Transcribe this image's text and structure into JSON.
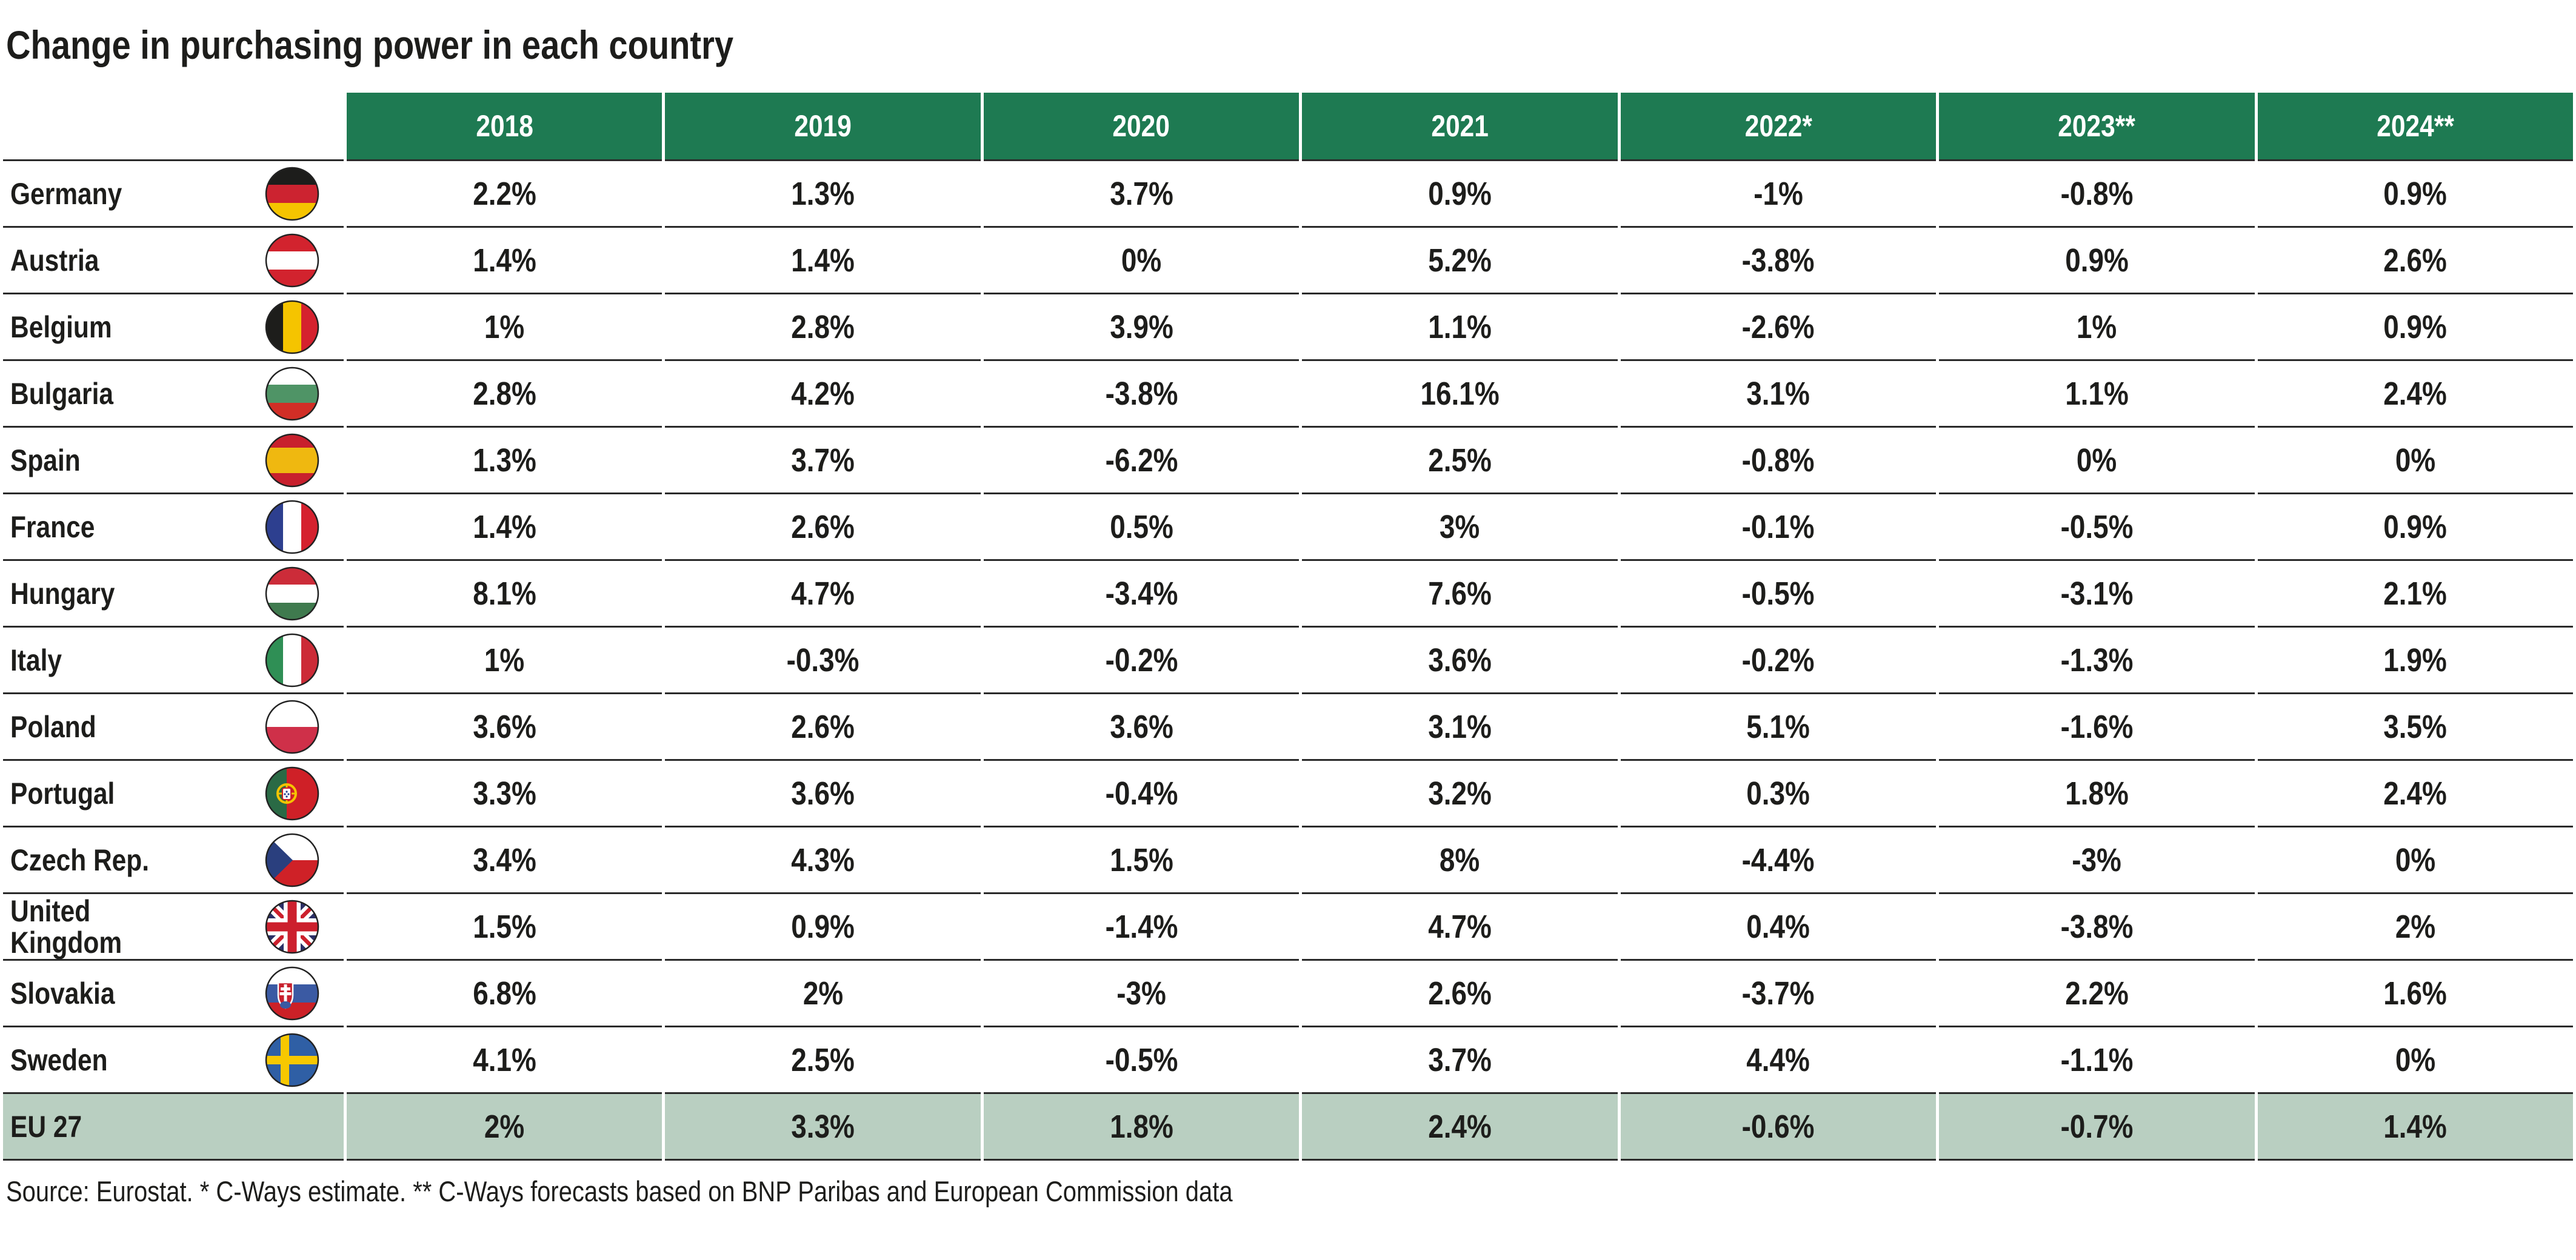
{
  "title": "Change in purchasing power in each country",
  "source_note": "Source: Eurostat. * C-Ways estimate. ** C-Ways forecasts based on BNP Paribas and European Commission data",
  "colors": {
    "header_green": "#1e7a52",
    "eu_row_green": "#b9cfc1",
    "row_border": "#2a2a2a",
    "text": "#1d1d1b",
    "header_text": "#ffffff"
  },
  "table": {
    "columns": [
      "2018",
      "2019",
      "2020",
      "2021",
      "2022*",
      "2023**",
      "2024**"
    ],
    "rows": [
      {
        "country": "Germany",
        "flag": "germany",
        "values": [
          "2.2%",
          "1.3%",
          "3.7%",
          "0.9%",
          "-1%",
          "-0.8%",
          "0.9%"
        ]
      },
      {
        "country": "Austria",
        "flag": "austria",
        "values": [
          "1.4%",
          "1.4%",
          "0%",
          "5.2%",
          "-3.8%",
          "0.9%",
          "2.6%"
        ]
      },
      {
        "country": "Belgium",
        "flag": "belgium",
        "values": [
          "1%",
          "2.8%",
          "3.9%",
          "1.1%",
          "-2.6%",
          "1%",
          "0.9%"
        ]
      },
      {
        "country": "Bulgaria",
        "flag": "bulgaria",
        "values": [
          "2.8%",
          "4.2%",
          "-3.8%",
          "16.1%",
          "3.1%",
          "1.1%",
          "2.4%"
        ]
      },
      {
        "country": "Spain",
        "flag": "spain",
        "values": [
          "1.3%",
          "3.7%",
          "-6.2%",
          "2.5%",
          "-0.8%",
          "0%",
          "0%"
        ]
      },
      {
        "country": "France",
        "flag": "france",
        "values": [
          "1.4%",
          "2.6%",
          "0.5%",
          "3%",
          "-0.1%",
          "-0.5%",
          "0.9%"
        ]
      },
      {
        "country": "Hungary",
        "flag": "hungary",
        "values": [
          "8.1%",
          "4.7%",
          "-3.4%",
          "7.6%",
          "-0.5%",
          "-3.1%",
          "2.1%"
        ]
      },
      {
        "country": "Italy",
        "flag": "italy",
        "values": [
          "1%",
          "-0.3%",
          "-0.2%",
          "3.6%",
          "-0.2%",
          "-1.3%",
          "1.9%"
        ]
      },
      {
        "country": "Poland",
        "flag": "poland",
        "values": [
          "3.6%",
          "2.6%",
          "3.6%",
          "3.1%",
          "5.1%",
          "-1.6%",
          "3.5%"
        ]
      },
      {
        "country": "Portugal",
        "flag": "portugal",
        "values": [
          "3.3%",
          "3.6%",
          "-0.4%",
          "3.2%",
          "0.3%",
          "1.8%",
          "2.4%"
        ]
      },
      {
        "country": "Czech Rep.",
        "flag": "czech-republic",
        "values": [
          "3.4%",
          "4.3%",
          "1.5%",
          "8%",
          "-4.4%",
          "-3%",
          "0%"
        ]
      },
      {
        "country": "United Kingdom",
        "flag": "united-kingdom",
        "values": [
          "1.5%",
          "0.9%",
          "-1.4%",
          "4.7%",
          "0.4%",
          "-3.8%",
          "2%"
        ]
      },
      {
        "country": "Slovakia",
        "flag": "slovakia",
        "values": [
          "6.8%",
          "2%",
          "-3%",
          "2.6%",
          "-3.7%",
          "2.2%",
          "1.6%"
        ]
      },
      {
        "country": "Sweden",
        "flag": "sweden",
        "values": [
          "4.1%",
          "2.5%",
          "-0.5%",
          "3.7%",
          "4.4%",
          "-1.1%",
          "0%"
        ]
      },
      {
        "country": "EU 27",
        "flag": null,
        "values": [
          "2%",
          "3.3%",
          "1.8%",
          "2.4%",
          "-0.6%",
          "-0.7%",
          "1.4%"
        ],
        "highlight": true
      }
    ]
  },
  "chart_data": {
    "type": "table",
    "title": "Change in purchasing power in each country",
    "categories": [
      "2018",
      "2019",
      "2020",
      "2021",
      "2022*",
      "2023**",
      "2024**"
    ],
    "unit": "%",
    "series": [
      {
        "name": "Germany",
        "values": [
          2.2,
          1.3,
          3.7,
          0.9,
          -1,
          -0.8,
          0.9
        ]
      },
      {
        "name": "Austria",
        "values": [
          1.4,
          1.4,
          0,
          5.2,
          -3.8,
          0.9,
          2.6
        ]
      },
      {
        "name": "Belgium",
        "values": [
          1,
          2.8,
          3.9,
          1.1,
          -2.6,
          1,
          0.9
        ]
      },
      {
        "name": "Bulgaria",
        "values": [
          2.8,
          4.2,
          -3.8,
          16.1,
          3.1,
          1.1,
          2.4
        ]
      },
      {
        "name": "Spain",
        "values": [
          1.3,
          3.7,
          -6.2,
          2.5,
          -0.8,
          0,
          0
        ]
      },
      {
        "name": "France",
        "values": [
          1.4,
          2.6,
          0.5,
          3,
          -0.1,
          -0.5,
          0.9
        ]
      },
      {
        "name": "Hungary",
        "values": [
          8.1,
          4.7,
          -3.4,
          7.6,
          -0.5,
          -3.1,
          2.1
        ]
      },
      {
        "name": "Italy",
        "values": [
          1,
          -0.3,
          -0.2,
          3.6,
          -0.2,
          -1.3,
          1.9
        ]
      },
      {
        "name": "Poland",
        "values": [
          3.6,
          2.6,
          3.6,
          3.1,
          5.1,
          -1.6,
          3.5
        ]
      },
      {
        "name": "Portugal",
        "values": [
          3.3,
          3.6,
          -0.4,
          3.2,
          0.3,
          1.8,
          2.4
        ]
      },
      {
        "name": "Czech Rep.",
        "values": [
          3.4,
          4.3,
          1.5,
          8,
          -4.4,
          -3,
          0
        ]
      },
      {
        "name": "United Kingdom",
        "values": [
          1.5,
          0.9,
          -1.4,
          4.7,
          0.4,
          -3.8,
          2
        ]
      },
      {
        "name": "Slovakia",
        "values": [
          6.8,
          2,
          -3,
          2.6,
          -3.7,
          2.2,
          1.6
        ]
      },
      {
        "name": "Sweden",
        "values": [
          4.1,
          2.5,
          -0.5,
          3.7,
          4.4,
          -1.1,
          0
        ]
      },
      {
        "name": "EU 27",
        "values": [
          2,
          3.3,
          1.8,
          2.4,
          -0.6,
          -0.7,
          1.4
        ]
      }
    ],
    "footnote": "Source: Eurostat. * C-Ways estimate. ** C-Ways forecasts based on BNP Paribas and European Commission data"
  }
}
